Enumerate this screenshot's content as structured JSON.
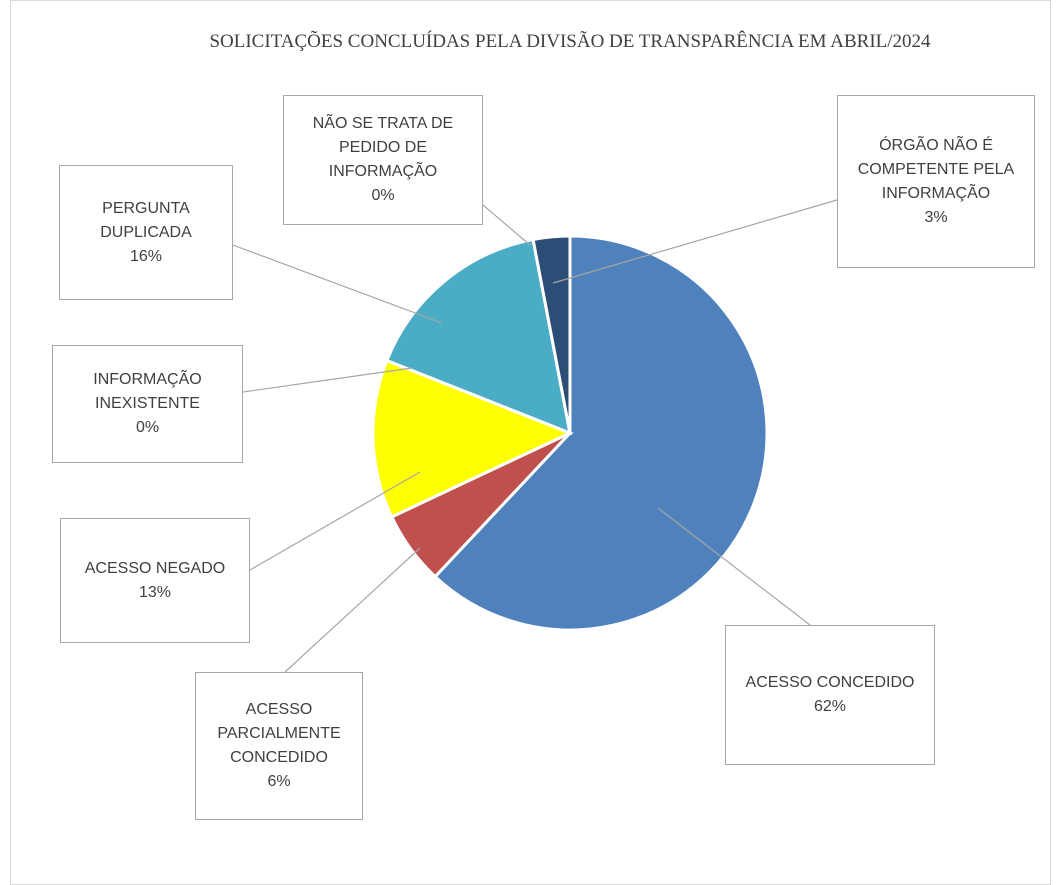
{
  "chart_data": {
    "type": "pie",
    "title": "SOLICITAÇÕES CONCLUÍDAS PELA DIVISÃO DE TRANSPARÊNCIA EM ABRIL/2024",
    "categories": [
      "ACESSO CONCEDIDO",
      "ACESSO PARCIALMENTE CONCEDIDO",
      "ACESSO NEGADO",
      "INFORMAÇÃO INEXISTENTE",
      "PERGUNTA DUPLICADA",
      "NÃO SE TRATA DE PEDIDO DE INFORMAÇÃO",
      "ÓRGÃO NÃO É COMPETENTE PELA INFORMAÇÃO"
    ],
    "values": [
      62,
      6,
      13,
      0,
      16,
      0,
      3
    ],
    "value_labels": [
      "62%",
      "6%",
      "13%",
      "0%",
      "16%",
      "0%",
      "3%"
    ],
    "colors": [
      "#4f81bd",
      "#c0504d",
      "#ffff00",
      "#9bbb59",
      "#4bacc6",
      "#8064a2",
      "#2c4d75"
    ]
  }
}
